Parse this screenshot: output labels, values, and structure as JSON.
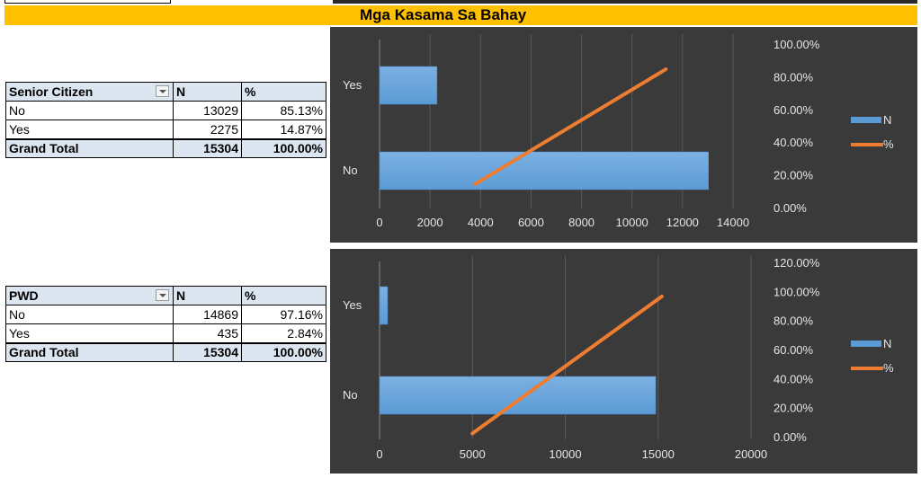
{
  "header": {
    "title": "Mga Kasama Sa Bahay"
  },
  "tables": [
    {
      "columns": [
        "Senior Citizen",
        "N",
        "%"
      ],
      "rows": [
        {
          "label": "No",
          "n": "13029",
          "pct": "85.13%"
        },
        {
          "label": "Yes",
          "n": "2275",
          "pct": "14.87%"
        }
      ],
      "total": {
        "label": "Grand Total",
        "n": "15304",
        "pct": "100.00%"
      }
    },
    {
      "columns": [
        "PWD",
        "N",
        "%"
      ],
      "rows": [
        {
          "label": "No",
          "n": "14869",
          "pct": "97.16%"
        },
        {
          "label": "Yes",
          "n": "435",
          "pct": "2.84%"
        }
      ],
      "total": {
        "label": "Grand Total",
        "n": "15304",
        "pct": "100.00%"
      }
    }
  ],
  "chart_data": [
    {
      "type": "bar",
      "orientation": "horizontal",
      "categories": [
        "No",
        "Yes"
      ],
      "series": [
        {
          "name": "N",
          "type": "bar",
          "axis": "bottom",
          "color": "#5b9bd5",
          "values": [
            13029,
            2275
          ]
        },
        {
          "name": "%",
          "type": "line",
          "axis": "right",
          "color": "#ed7d31",
          "values": [
            0.8513,
            0.1487
          ]
        }
      ],
      "x_axis": {
        "min": 0,
        "max": 14000,
        "ticks": [
          "0",
          "2000",
          "4000",
          "6000",
          "8000",
          "10000",
          "12000",
          "14000"
        ]
      },
      "y2_axis": {
        "min": 0,
        "max": 1,
        "ticks": [
          "0.00%",
          "20.00%",
          "40.00%",
          "60.00%",
          "80.00%",
          "100.00%"
        ]
      },
      "legend_position": "right",
      "background": "#3a3a3a"
    },
    {
      "type": "bar",
      "orientation": "horizontal",
      "categories": [
        "No",
        "Yes"
      ],
      "series": [
        {
          "name": "N",
          "type": "bar",
          "axis": "bottom",
          "color": "#5b9bd5",
          "values": [
            14869,
            435
          ]
        },
        {
          "name": "%",
          "type": "line",
          "axis": "right",
          "color": "#ed7d31",
          "values": [
            0.9716,
            0.0284
          ]
        }
      ],
      "x_axis": {
        "min": 0,
        "max": 20000,
        "ticks": [
          "0",
          "5000",
          "10000",
          "15000",
          "20000"
        ]
      },
      "y2_axis": {
        "min": 0,
        "max": 1.2,
        "ticks": [
          "0.00%",
          "20.00%",
          "40.00%",
          "60.00%",
          "80.00%",
          "100.00%",
          "120.00%"
        ]
      },
      "legend_position": "right",
      "background": "#3a3a3a"
    }
  ]
}
